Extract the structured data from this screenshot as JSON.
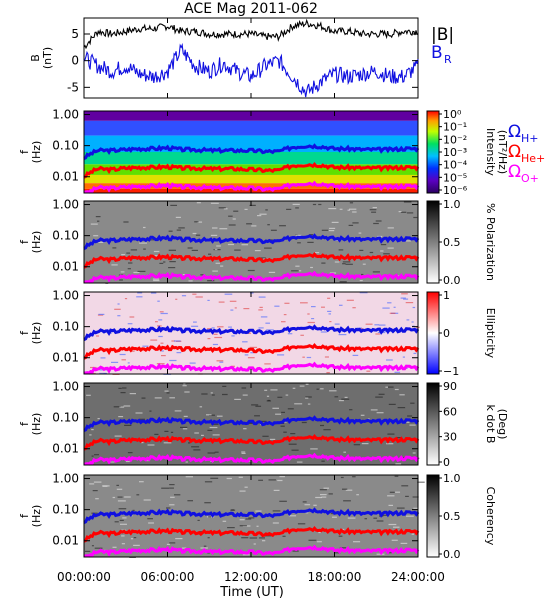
{
  "chart_data": [
    {
      "type": "line",
      "title": "ACE Mag 2011-062",
      "ylabel": "B\n(nT)",
      "ylim": [
        -7,
        8
      ],
      "yticks": [
        5,
        0,
        -5
      ],
      "legend": [
        "|B|",
        "B_R"
      ],
      "legend_colors": [
        "#000000",
        "#1010e0"
      ],
      "series": [
        {
          "name": "|B|",
          "color": "#000000",
          "x": [
            0,
            1,
            2,
            3,
            4,
            5,
            6,
            7,
            8,
            9,
            10,
            11,
            12,
            13,
            14,
            15,
            16,
            17,
            18,
            19,
            20,
            21,
            22,
            23,
            24
          ],
          "y": [
            2.5,
            5.5,
            5.0,
            5.5,
            6.0,
            6.0,
            6.5,
            5.5,
            5.5,
            5.0,
            5.0,
            5.0,
            5.0,
            4.5,
            4.5,
            6.5,
            7.0,
            6.5,
            5.5,
            5.5,
            5.0,
            5.0,
            5.0,
            5.5,
            5.5
          ]
        },
        {
          "name": "B_R",
          "color": "#1010e0",
          "x": [
            0,
            1,
            2,
            3,
            4,
            5,
            6,
            7,
            8,
            9,
            10,
            11,
            12,
            13,
            14,
            15,
            16,
            17,
            18,
            19,
            20,
            21,
            22,
            23,
            24
          ],
          "y": [
            0.5,
            -1.0,
            -2.0,
            -1.0,
            -2.5,
            -3.0,
            -2.0,
            2.0,
            -1.0,
            -2.0,
            -0.5,
            -2.0,
            -3.0,
            -1.0,
            0.0,
            -3.0,
            -6.0,
            -4.0,
            -2.5,
            -3.0,
            -2.5,
            -2.0,
            -3.0,
            -3.0,
            -1.0
          ]
        }
      ]
    },
    {
      "type": "heatmap",
      "quantity": "Intensity",
      "ylabel": "f\n(Hz)",
      "yscale": "log",
      "ylim": [
        0.003,
        1.3
      ],
      "yticks": [
        "1.00",
        "0.10",
        "0.01"
      ],
      "colorbar": {
        "label": "Intensity\n(nT²/Hz)",
        "ticks": [
          "10⁰",
          "10⁻¹",
          "10⁻²",
          "10⁻³",
          "10⁻⁴",
          "10⁻⁵",
          "10⁻⁶"
        ],
        "colormap": "rainbow"
      },
      "legend": [
        "Ω_H+",
        "Ω_He+",
        "Ω_O+"
      ],
      "legend_colors": [
        "#1010e0",
        "#ff0000",
        "#ff00ff"
      ]
    },
    {
      "type": "heatmap",
      "quantity": "% Polarization",
      "ylabel": "f\n(Hz)",
      "yscale": "log",
      "yticks": [
        "1.00",
        "0.10",
        "0.01"
      ],
      "colorbar": {
        "label": "% Polarization",
        "ticks": [
          "1.0",
          "0.5",
          "0.0"
        ],
        "colormap": "gray"
      }
    },
    {
      "type": "heatmap",
      "quantity": "Ellipticity",
      "ylabel": "f\n(Hz)",
      "yscale": "log",
      "yticks": [
        "1.00",
        "0.10",
        "0.01"
      ],
      "colorbar": {
        "label": "Ellipticity",
        "ticks": [
          "1",
          "0",
          "−1"
        ],
        "colormap": "blue-white-red"
      }
    },
    {
      "type": "heatmap",
      "quantity": "k dot B",
      "ylabel": "f\n(Hz)",
      "yscale": "log",
      "yticks": [
        "1.00",
        "0.10",
        "0.01"
      ],
      "colorbar": {
        "label": "k dot B\n(Deg)",
        "ticks": [
          "90",
          "60",
          "30",
          "0"
        ],
        "colormap": "gray"
      }
    },
    {
      "type": "heatmap",
      "quantity": "Coherency",
      "ylabel": "f\n(Hz)",
      "yscale": "log",
      "yticks": [
        "1.00",
        "0.10",
        "0.01"
      ],
      "colorbar": {
        "label": "Coherency",
        "ticks": [
          "1.0",
          "0.5",
          "0.0"
        ],
        "colormap": "gray"
      }
    }
  ],
  "gyrofrequency_lines": {
    "x": [
      0,
      1,
      2,
      3,
      4,
      5,
      6,
      7,
      8,
      9,
      10,
      11,
      12,
      13,
      14,
      15,
      16,
      17,
      18,
      19,
      20,
      21,
      22,
      23,
      24
    ],
    "H_plus": [
      0.04,
      0.07,
      0.07,
      0.075,
      0.08,
      0.08,
      0.085,
      0.075,
      0.075,
      0.07,
      0.07,
      0.07,
      0.07,
      0.065,
      0.065,
      0.09,
      0.1,
      0.095,
      0.08,
      0.08,
      0.075,
      0.075,
      0.075,
      0.08,
      0.08
    ],
    "He_plus": [
      0.01,
      0.018,
      0.017,
      0.019,
      0.02,
      0.02,
      0.021,
      0.019,
      0.019,
      0.018,
      0.018,
      0.018,
      0.017,
      0.016,
      0.016,
      0.023,
      0.025,
      0.024,
      0.02,
      0.02,
      0.019,
      0.019,
      0.019,
      0.02,
      0.02
    ],
    "O_plus": [
      0.0025,
      0.0045,
      0.0043,
      0.0047,
      0.005,
      0.005,
      0.0053,
      0.0047,
      0.0047,
      0.0044,
      0.0044,
      0.0044,
      0.0043,
      0.004,
      0.004,
      0.0057,
      0.0063,
      0.006,
      0.005,
      0.005,
      0.0047,
      0.0047,
      0.0047,
      0.005,
      0.005
    ]
  },
  "x_axis": {
    "label": "Time (UT)",
    "ticks": [
      "00:00:00",
      "06:00:00",
      "12:00:00",
      "18:00:00",
      "24:00:00"
    ],
    "range": [
      0,
      24
    ]
  },
  "colors": {
    "H_plus": "#1010e0",
    "He_plus": "#ff0000",
    "O_plus": "#ff00ff"
  }
}
